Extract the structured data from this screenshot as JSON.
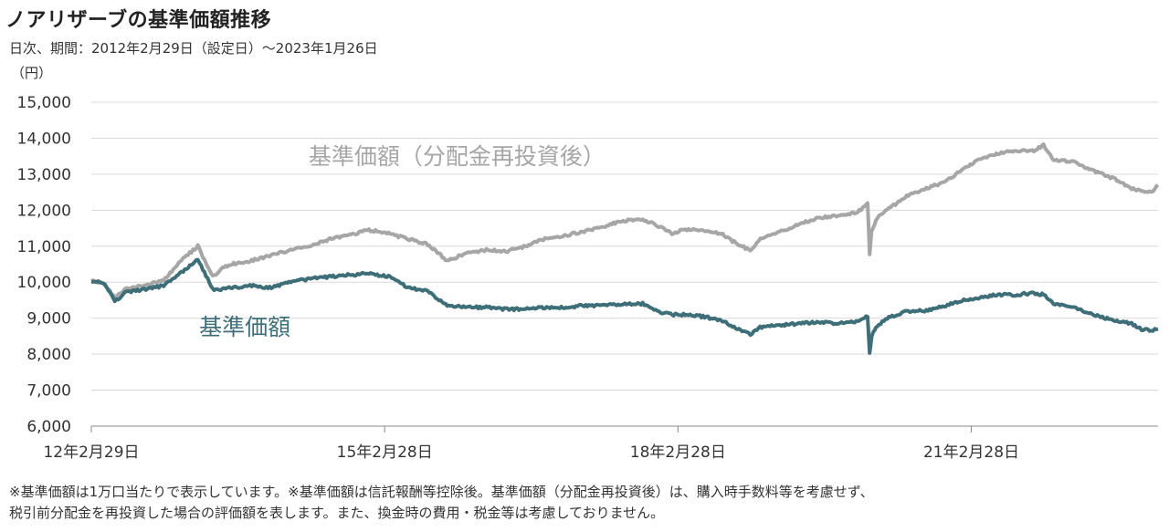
{
  "header": {
    "title": "ノアリザーブの基準価額推移",
    "subtitle": "日次、期間：2012年2月29日（設定日）～2023年1月26日",
    "unit": "（円）"
  },
  "notes": {
    "line1": "※基準価額は1万口当たりで表示しています。※基準価額は信託報酬等控除後。基準価額（分配金再投資後）は、購入時手数料等を考慮せず、",
    "line2": "税引前分配金を再投資した場合の評価額を表します。また、換金時の費用・税金等は考慮しておりません。"
  },
  "chart_data": {
    "type": "line",
    "ylim": [
      6000,
      15000
    ],
    "yticks": [
      "6,000",
      "7,000",
      "8,000",
      "9,000",
      "10,000",
      "11,000",
      "12,000",
      "13,000",
      "14,000",
      "15,000"
    ],
    "ytick_values": [
      6000,
      7000,
      8000,
      9000,
      10000,
      11000,
      12000,
      13000,
      14000,
      15000
    ],
    "xlim": [
      2012.16,
      2023.07
    ],
    "xticks": [
      "12年2月29日",
      "15年2月28日",
      "18年2月28日",
      "21年2月28日"
    ],
    "xtick_values": [
      2012.16,
      2015.16,
      2018.16,
      2021.16
    ],
    "grid": true,
    "series": [
      {
        "name": "基準価額（分配金再投資後）",
        "color": "#a6a6a6",
        "x": [
          2012.16,
          2012.3,
          2012.4,
          2012.5,
          2012.7,
          2012.9,
          2013.1,
          2013.25,
          2013.4,
          2013.5,
          2013.6,
          2013.8,
          2014.0,
          2014.2,
          2014.4,
          2014.6,
          2014.8,
          2015.0,
          2015.2,
          2015.4,
          2015.6,
          2015.8,
          2016.0,
          2016.2,
          2016.4,
          2016.6,
          2016.8,
          2017.0,
          2017.2,
          2017.4,
          2017.6,
          2017.8,
          2018.0,
          2018.1,
          2018.2,
          2018.4,
          2018.6,
          2018.8,
          2018.9,
          2019.0,
          2019.2,
          2019.4,
          2019.6,
          2019.8,
          2020.0,
          2020.1,
          2020.12,
          2020.14,
          2020.2,
          2020.3,
          2020.5,
          2020.7,
          2020.9,
          2021.0,
          2021.2,
          2021.4,
          2021.6,
          2021.8,
          2021.9,
          2022.0,
          2022.2,
          2022.4,
          2022.6,
          2022.8,
          2022.9,
          2023.0,
          2023.07
        ],
        "values": [
          10050,
          9950,
          9550,
          9800,
          9900,
          10050,
          10650,
          11000,
          10150,
          10400,
          10500,
          10600,
          10750,
          10900,
          11000,
          11200,
          11300,
          11450,
          11350,
          11200,
          11050,
          10600,
          10800,
          10900,
          10850,
          11000,
          11200,
          11300,
          11400,
          11550,
          11700,
          11750,
          11500,
          11350,
          11450,
          11450,
          11350,
          11000,
          10900,
          11200,
          11400,
          11600,
          11800,
          11850,
          11950,
          12200,
          10800,
          11400,
          11800,
          12000,
          12400,
          12600,
          12800,
          13000,
          13350,
          13550,
          13650,
          13650,
          13800,
          13400,
          13350,
          13100,
          12900,
          12600,
          12550,
          12500,
          12700
        ]
      },
      {
        "name": "基準価額",
        "color": "#3e6f78",
        "x": [
          2012.16,
          2012.3,
          2012.4,
          2012.5,
          2012.7,
          2012.9,
          2013.1,
          2013.25,
          2013.4,
          2013.5,
          2013.6,
          2013.8,
          2014.0,
          2014.2,
          2014.4,
          2014.6,
          2014.8,
          2015.0,
          2015.2,
          2015.4,
          2015.6,
          2015.8,
          2016.0,
          2016.2,
          2016.4,
          2016.6,
          2016.8,
          2017.0,
          2017.2,
          2017.4,
          2017.6,
          2017.8,
          2018.0,
          2018.1,
          2018.2,
          2018.4,
          2018.6,
          2018.8,
          2018.9,
          2019.0,
          2019.2,
          2019.4,
          2019.6,
          2019.8,
          2020.0,
          2020.1,
          2020.12,
          2020.14,
          2020.2,
          2020.3,
          2020.5,
          2020.7,
          2020.9,
          2021.0,
          2021.2,
          2021.4,
          2021.6,
          2021.8,
          2021.9,
          2022.0,
          2022.2,
          2022.4,
          2022.6,
          2022.8,
          2022.9,
          2023.0,
          2023.07
        ],
        "values": [
          10050,
          9950,
          9450,
          9700,
          9800,
          9900,
          10300,
          10650,
          9800,
          9800,
          9850,
          9900,
          9850,
          10000,
          10100,
          10150,
          10200,
          10250,
          10150,
          9850,
          9750,
          9350,
          9300,
          9300,
          9250,
          9250,
          9300,
          9300,
          9350,
          9350,
          9400,
          9400,
          9150,
          9100,
          9100,
          9050,
          8950,
          8650,
          8550,
          8750,
          8800,
          8850,
          8900,
          8850,
          8900,
          9050,
          8000,
          8500,
          8800,
          9000,
          9200,
          9200,
          9350,
          9450,
          9550,
          9650,
          9650,
          9700,
          9650,
          9400,
          9300,
          9100,
          8950,
          8850,
          8700,
          8650,
          8700
        ]
      }
    ],
    "annotations": [
      {
        "text": "基準価額（分配金再投資後）",
        "x": 2015.9,
        "y": 13270,
        "color": "#a6a6a6"
      },
      {
        "text": "基準価額",
        "x": 2013.73,
        "y": 8530,
        "color": "#3e6f78"
      }
    ]
  }
}
